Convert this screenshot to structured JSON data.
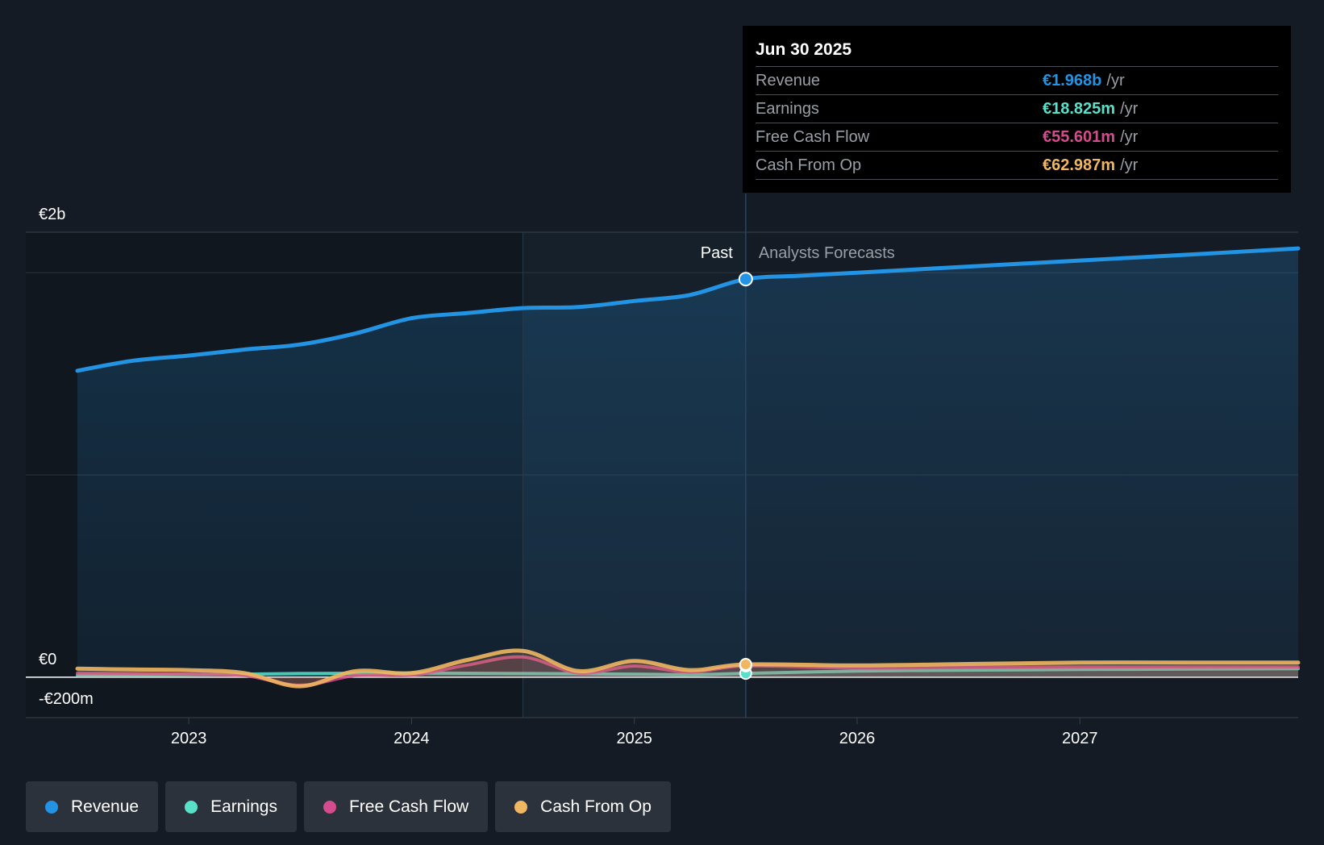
{
  "chart_data": {
    "type": "area",
    "title": "",
    "x_axis": {
      "ticks": [
        "2023",
        "2024",
        "2025",
        "2026",
        "2027"
      ],
      "range": [
        2022.5,
        2027.98
      ]
    },
    "y_axis": {
      "labels": [
        "€2b",
        "€0",
        "-€200m"
      ],
      "range_millions": [
        -200,
        2200
      ]
    },
    "sections": {
      "past_label": "Past",
      "forecast_label": "Analysts Forecasts",
      "divider_x": 2025.5,
      "highlight_start_x": 2024.5
    },
    "series": [
      {
        "name": "Revenue",
        "key": "revenue",
        "color": "#2394e3",
        "x": [
          2022.5,
          2022.75,
          2023.0,
          2023.25,
          2023.5,
          2023.75,
          2024.0,
          2024.25,
          2024.5,
          2024.75,
          2025.0,
          2025.25,
          2025.5,
          2025.75,
          2026.0,
          2026.5,
          2027.0,
          2027.5,
          2027.98
        ],
        "values": [
          1515,
          1565,
          1590,
          1620,
          1645,
          1700,
          1775,
          1800,
          1825,
          1830,
          1860,
          1890,
          1968,
          1985,
          2000,
          2030,
          2060,
          2090,
          2120
        ]
      },
      {
        "name": "Earnings",
        "key": "earnings",
        "color": "#58e0c9",
        "x": [
          2022.5,
          2023.0,
          2023.5,
          2024.0,
          2024.5,
          2025.0,
          2025.25,
          2025.5,
          2026.0,
          2026.5,
          2027.0,
          2027.5,
          2027.98
        ],
        "values": [
          10,
          12,
          18,
          20,
          18,
          15,
          12,
          18.825,
          30,
          35,
          38,
          40,
          42
        ]
      },
      {
        "name": "Free Cash Flow",
        "key": "fcf",
        "color": "#d44c8d",
        "x": [
          2022.5,
          2022.75,
          2023.0,
          2023.25,
          2023.5,
          2023.75,
          2024.0,
          2024.25,
          2024.5,
          2024.75,
          2025.0,
          2025.25,
          2025.5,
          2026.0,
          2026.5,
          2027.0,
          2027.5,
          2027.98
        ],
        "values": [
          20,
          18,
          15,
          8,
          -40,
          8,
          10,
          60,
          100,
          20,
          55,
          25,
          55.601,
          45,
          48,
          50,
          50,
          50
        ]
      },
      {
        "name": "Cash From Op",
        "key": "cfo",
        "color": "#f0b662",
        "x": [
          2022.5,
          2022.75,
          2023.0,
          2023.25,
          2023.5,
          2023.75,
          2024.0,
          2024.25,
          2024.5,
          2024.75,
          2025.0,
          2025.25,
          2025.5,
          2026.0,
          2026.5,
          2027.0,
          2027.5,
          2027.98
        ],
        "values": [
          42,
          38,
          35,
          20,
          -45,
          30,
          20,
          85,
          130,
          30,
          80,
          35,
          62.987,
          58,
          65,
          72,
          72,
          72
        ]
      }
    ]
  },
  "tooltip": {
    "date": "Jun 30 2025",
    "rows": [
      {
        "label": "Revenue",
        "value": "€1.968b",
        "unit": "/yr",
        "color": "#2394e3"
      },
      {
        "label": "Earnings",
        "value": "€18.825m",
        "unit": "/yr",
        "color": "#58e0c9"
      },
      {
        "label": "Free Cash Flow",
        "value": "€55.601m",
        "unit": "/yr",
        "color": "#d44c8d"
      },
      {
        "label": "Cash From Op",
        "value": "€62.987m",
        "unit": "/yr",
        "color": "#f0b662"
      }
    ]
  },
  "legend": [
    {
      "label": "Revenue",
      "color": "#2394e3"
    },
    {
      "label": "Earnings",
      "color": "#58e0c9"
    },
    {
      "label": "Free Cash Flow",
      "color": "#d44c8d"
    },
    {
      "label": "Cash From Op",
      "color": "#f0b662"
    }
  ]
}
